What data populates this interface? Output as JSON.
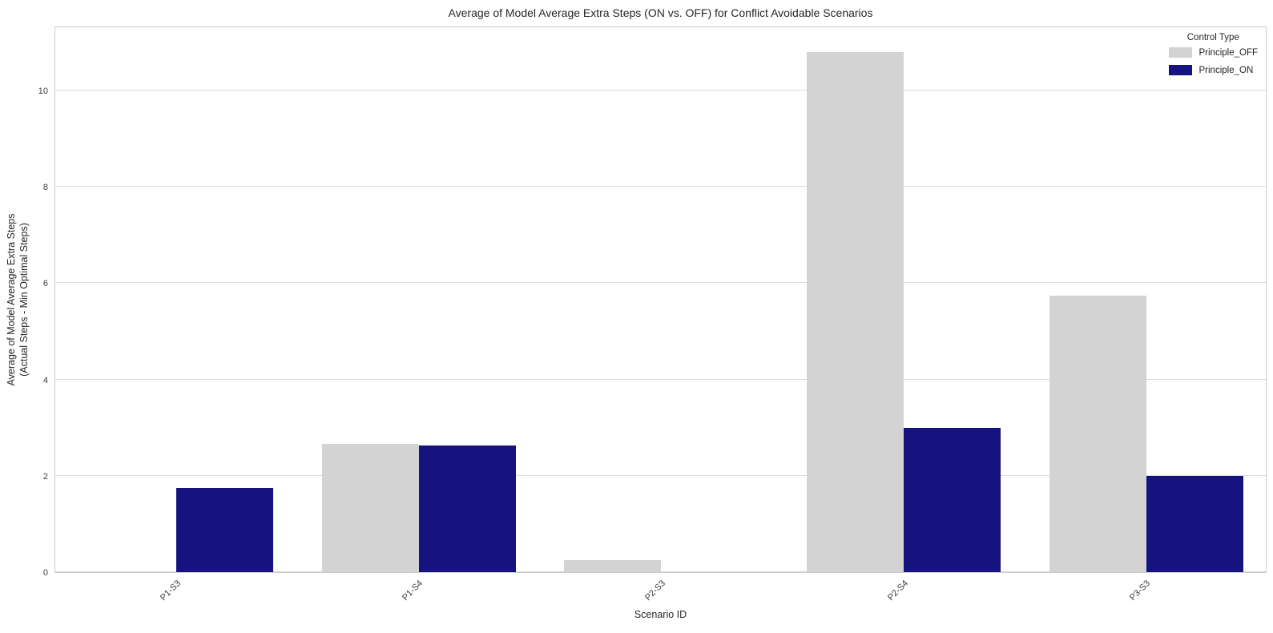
{
  "title": "Average of Model Average Extra Steps (ON vs. OFF) for Conflict Avoidable Scenarios",
  "chart_data": {
    "type": "bar",
    "title": "Average of Model Average Extra Steps (ON vs. OFF) for Conflict Avoidable Scenarios",
    "xlabel": "Scenario ID",
    "ylabel": "Average of Model Average Extra Steps (Actual Steps - Min Optimal Steps)",
    "ylabel_line1": "Average of Model Average Extra Steps",
    "ylabel_line2": "(Actual Steps - Min Optimal Steps)",
    "categories": [
      "P1-S3",
      "P1-S4",
      "P2-S3",
      "P2-S4",
      "P3-S3"
    ],
    "series": [
      {
        "name": "Principle_OFF",
        "color": "#d3d3d3",
        "values": [
          0,
          2.67,
          0.25,
          10.8,
          5.75
        ]
      },
      {
        "name": "Principle_ON",
        "color": "#161380",
        "values": [
          1.75,
          2.63,
          0,
          3.0,
          2.0
        ]
      }
    ],
    "ylim": [
      0,
      11.35
    ],
    "yticks": [
      0,
      2,
      4,
      6,
      8,
      10
    ],
    "grid": true,
    "legend_title": "Control Type",
    "legend_position": "upper right"
  },
  "colors": {
    "principle_off": "#d3d3d3",
    "principle_on": "#161380",
    "gridline": "#dcdcdc",
    "spine": "#cccccc",
    "text": "#262626",
    "tick_text": "#3d3d3d"
  }
}
